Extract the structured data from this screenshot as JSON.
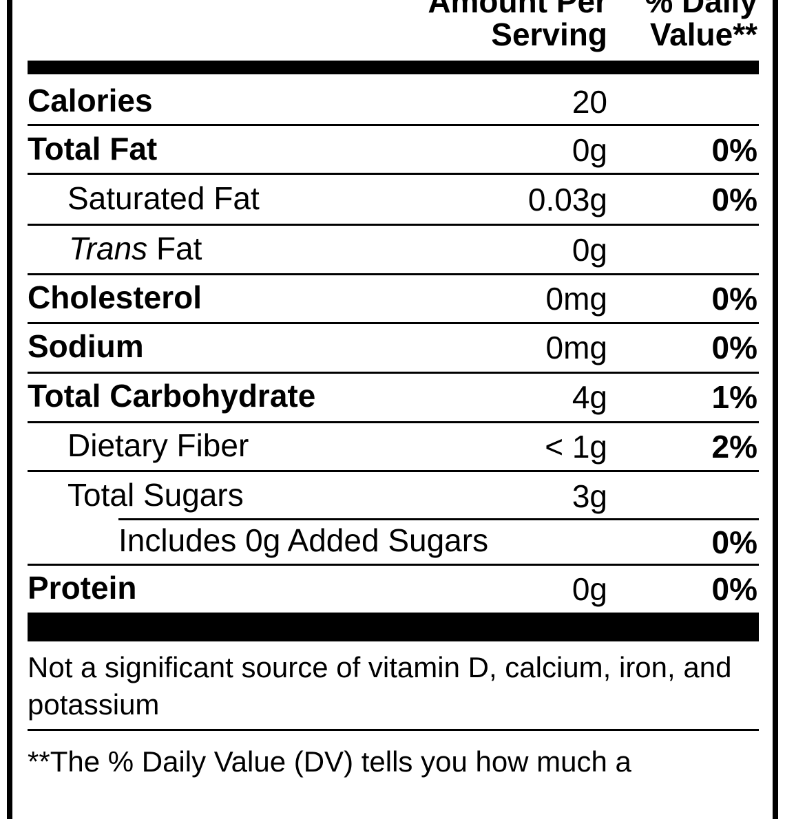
{
  "header": {
    "amount_line1": "Amount Per",
    "amount_line2": "Serving",
    "dv_line1": "% Daily",
    "dv_line2": "Value**"
  },
  "rows": [
    {
      "label": "Calories",
      "amount": "20",
      "dv": ""
    },
    {
      "label": "Total Fat",
      "amount": "0g",
      "dv": "0%"
    },
    {
      "label": "Saturated Fat",
      "amount": "0.03g",
      "dv": "0%"
    },
    {
      "label_italic": "Trans",
      "label": " Fat",
      "amount": "0g",
      "dv": ""
    },
    {
      "label": "Cholesterol",
      "amount": "0mg",
      "dv": "0%"
    },
    {
      "label": "Sodium",
      "amount": "0mg",
      "dv": "0%"
    },
    {
      "label": "Total Carbohydrate",
      "amount": "4g",
      "dv": "1%"
    },
    {
      "label": "Dietary Fiber",
      "amount": "< 1g",
      "dv": "2%"
    },
    {
      "label": "Total Sugars",
      "amount": "3g",
      "dv": ""
    },
    {
      "label": "Includes 0g Added Sugars",
      "amount": "",
      "dv": "0%"
    },
    {
      "label": "Protein",
      "amount": "0g",
      "dv": "0%"
    }
  ],
  "notes": {
    "vitamins": "Not a significant source of vitamin D, calcium, iron, and potassium",
    "footnote": "**The % Daily Value (DV) tells you how much a"
  }
}
